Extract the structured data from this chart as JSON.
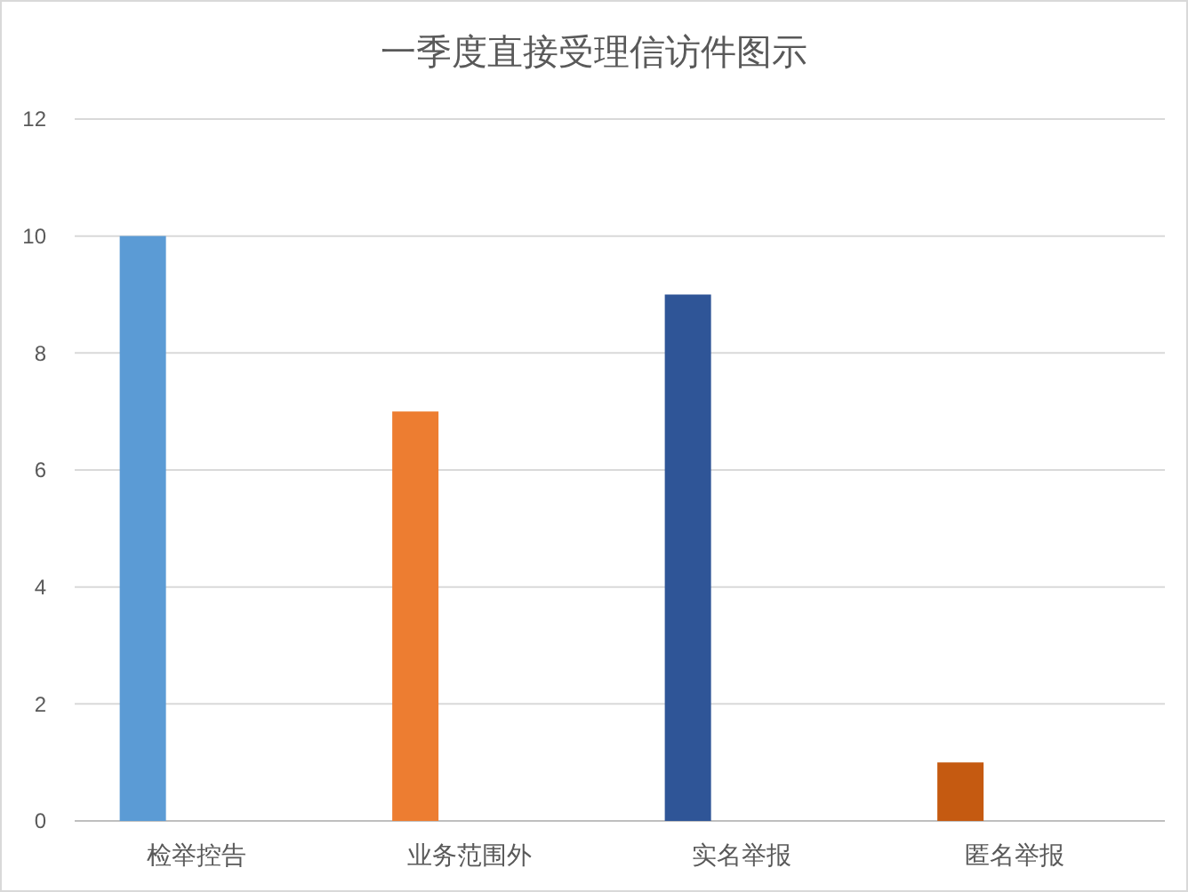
{
  "chart_data": {
    "type": "bar",
    "title": "一季度直接受理信访件图示",
    "categories": [
      "检举控告",
      "业务范围外",
      "实名举报",
      "匿名举报"
    ],
    "values": [
      10,
      7,
      9,
      1
    ],
    "colors": [
      "#5b9bd5",
      "#ed7d31",
      "#2f5597",
      "#c55a11"
    ],
    "ylim": [
      0,
      12
    ],
    "yticks": [
      0,
      2,
      4,
      6,
      8,
      10,
      12
    ],
    "grid": "y"
  }
}
